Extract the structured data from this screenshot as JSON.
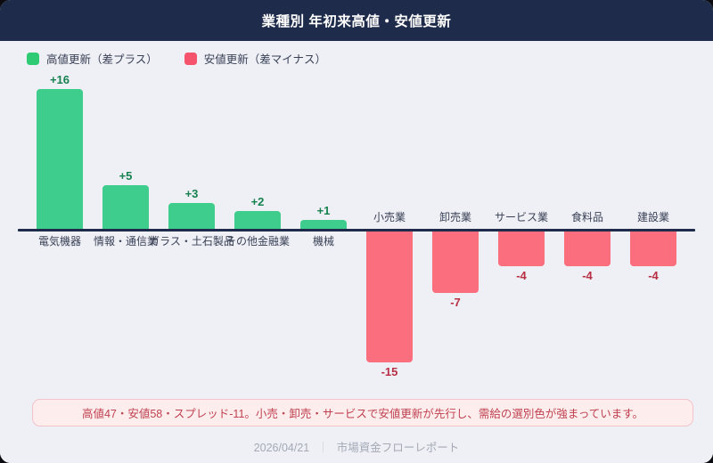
{
  "header": {
    "title": "業種別 年初来高値・安値更新"
  },
  "legend": [
    {
      "label": "高値更新（差プラス）",
      "color": "#2fca74"
    },
    {
      "label": "安値更新（差マイナス）",
      "color": "#f5536b"
    }
  ],
  "chart_data": {
    "type": "bar",
    "title": "業種別 年初来高値・安値更新",
    "categories": [
      "電気機器",
      "情報・通信業",
      "ガラス・土石製品",
      "その他金融業",
      "機械",
      "小売業",
      "卸売業",
      "サービス業",
      "食料品",
      "建設業"
    ],
    "values": [
      16,
      5,
      3,
      2,
      1,
      -15,
      -7,
      -4,
      -4,
      -4
    ],
    "value_labels": [
      "+16",
      "+5",
      "+3",
      "+2",
      "+1",
      "-15",
      "-7",
      "-4",
      "-4",
      "-4"
    ],
    "xlabel": "",
    "ylabel": "",
    "ylim": [
      -15,
      16
    ],
    "grid": false,
    "legend_position": "top-left",
    "baseline": 0,
    "colors": {
      "positive_bar": "#3ecd8c",
      "negative_bar": "#fb6e7e",
      "positive_value_text": "#178150",
      "negative_value_text": "#b82e44",
      "axis_line": "#1f2b4a",
      "category_text": "#3a4156"
    }
  },
  "note": {
    "text": "高値47・安値58・スプレッド-11。小売・卸売・サービスで安値更新が先行し、需給の選別色が強まっています。"
  },
  "footer": {
    "date": "2026/04/21",
    "separator": "｜",
    "source": "市場資金フローレポート"
  },
  "theme": {
    "header_bg": "#1f2b4a",
    "content_bg": "#eef0f5",
    "note_bg": "#fdeeed",
    "note_border": "#f3c3cb",
    "note_text": "#bf4050",
    "footer_text": "#a4a9b5"
  }
}
